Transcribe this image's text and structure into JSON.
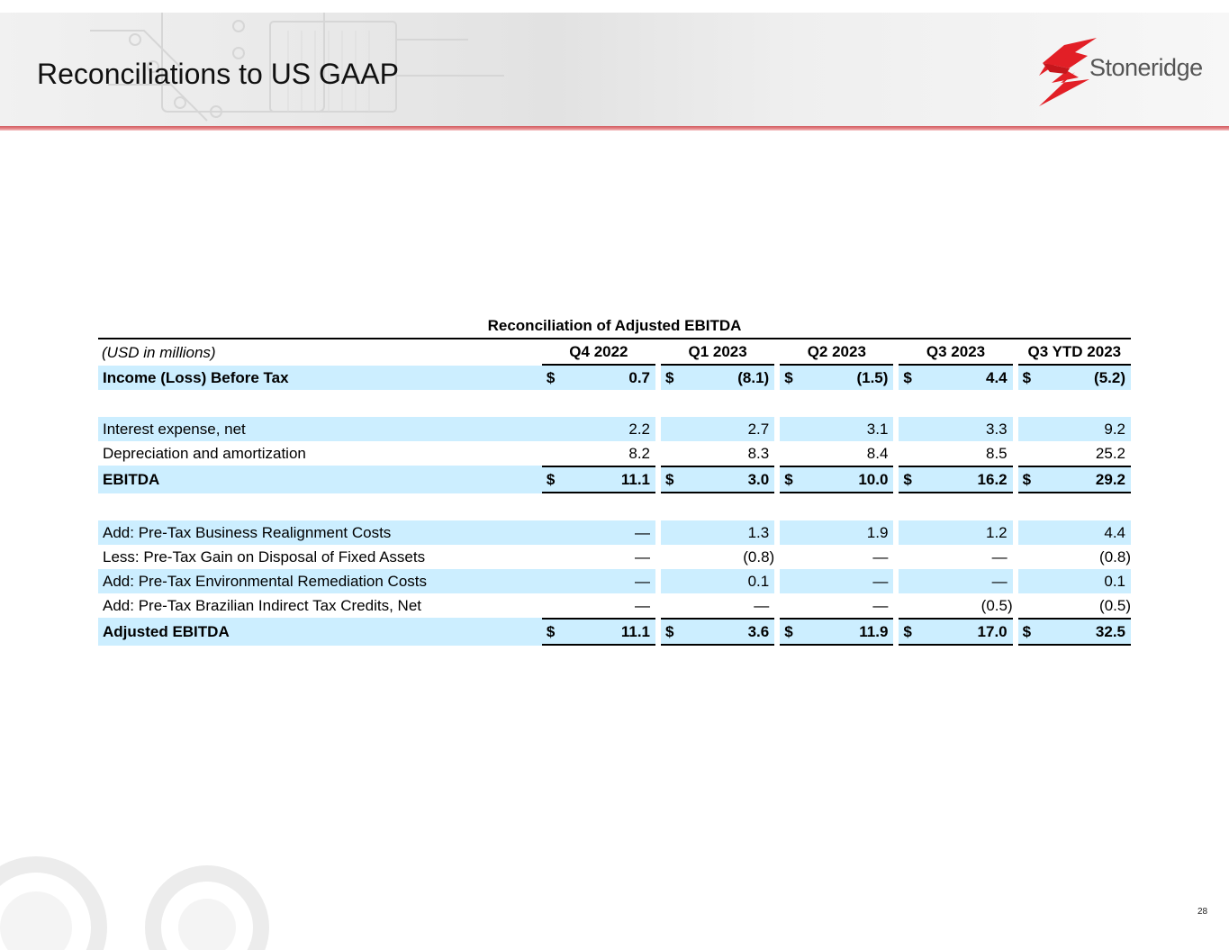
{
  "header": {
    "title": "Reconciliations to US GAAP",
    "logo_text": "Stoneridge",
    "accent_color": "#d05a5f"
  },
  "table": {
    "caption": "Reconciliation of Adjusted EBITDA",
    "units_label": "(USD in millions)",
    "columns": [
      "Q4 2022",
      "Q1 2023",
      "Q2 2023",
      "Q3 2023",
      "Q3 YTD 2023"
    ],
    "highlight_color": "#cceeff",
    "rows": [
      {
        "label": "Income (Loss) Before Tax",
        "currency": "$",
        "values": [
          "0.7",
          "(8.1)",
          "(1.5)",
          "4.4",
          "(5.2)"
        ]
      },
      {
        "label": "Interest expense, net",
        "values": [
          "2.2",
          "2.7",
          "3.1",
          "3.3",
          "9.2"
        ]
      },
      {
        "label": "Depreciation and amortization",
        "values": [
          "8.2",
          "8.3",
          "8.4",
          "8.5",
          "25.2"
        ]
      },
      {
        "label": "EBITDA",
        "currency": "$",
        "values": [
          "11.1",
          "3.0",
          "10.0",
          "16.2",
          "29.2"
        ]
      },
      {
        "label": "Add: Pre-Tax Business Realignment Costs",
        "values": [
          "—",
          "1.3",
          "1.9",
          "1.2",
          "4.4"
        ]
      },
      {
        "label": "Less: Pre-Tax Gain on Disposal of Fixed Assets",
        "values": [
          "—",
          "(0.8)",
          "—",
          "—",
          "(0.8)"
        ]
      },
      {
        "label": "Add: Pre-Tax Environmental Remediation Costs",
        "values": [
          "—",
          "0.1",
          "—",
          "—",
          "0.1"
        ]
      },
      {
        "label": "Add: Pre-Tax Brazilian Indirect Tax Credits, Net",
        "values": [
          "—",
          "—",
          "—",
          "(0.5)",
          "(0.5)"
        ]
      },
      {
        "label": "Adjusted EBITDA",
        "currency": "$",
        "values": [
          "11.1",
          "3.6",
          "11.9",
          "17.0",
          "32.5"
        ]
      }
    ]
  },
  "footer": {
    "page_number": "28"
  }
}
